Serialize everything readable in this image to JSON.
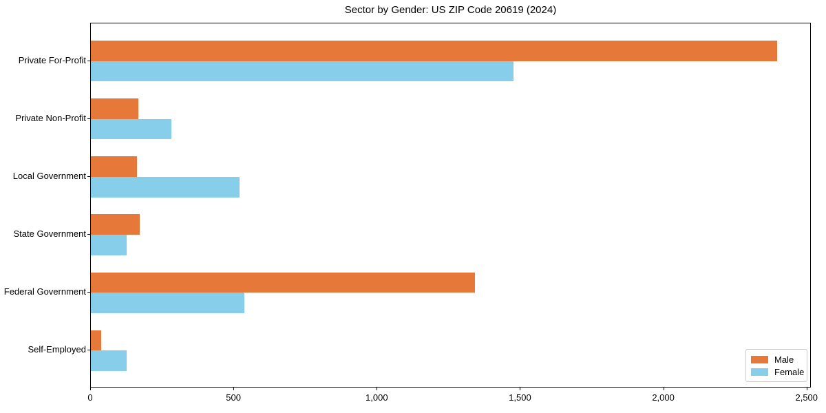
{
  "title": "Sector by Gender: US ZIP Code 20619 (2024)",
  "chart_data": {
    "type": "bar",
    "orientation": "horizontal",
    "title": "Sector by Gender: US ZIP Code 20619 (2024)",
    "xlabel": "",
    "ylabel": "",
    "categories": [
      "Private For-Profit",
      "Private Non-Profit",
      "Local Government",
      "State Government",
      "Federal Government",
      "Self-Employed"
    ],
    "series": [
      {
        "name": "Male",
        "color": "#E6793A",
        "values": [
          2395,
          165,
          160,
          170,
          1340,
          35
        ]
      },
      {
        "name": "Female",
        "color": "#87CEEB",
        "values": [
          1475,
          280,
          520,
          125,
          535,
          125
        ]
      }
    ],
    "xlim": [
      0,
      2515
    ],
    "xticks": [
      0,
      500,
      1000,
      1500,
      2000,
      2500
    ],
    "xtick_labels": [
      "0",
      "500",
      "1,000",
      "1,500",
      "2,000",
      "2,500"
    ],
    "grid": false,
    "legend_position": "lower right",
    "background_color": "#FFFFFF",
    "axis_color": "#000000"
  }
}
